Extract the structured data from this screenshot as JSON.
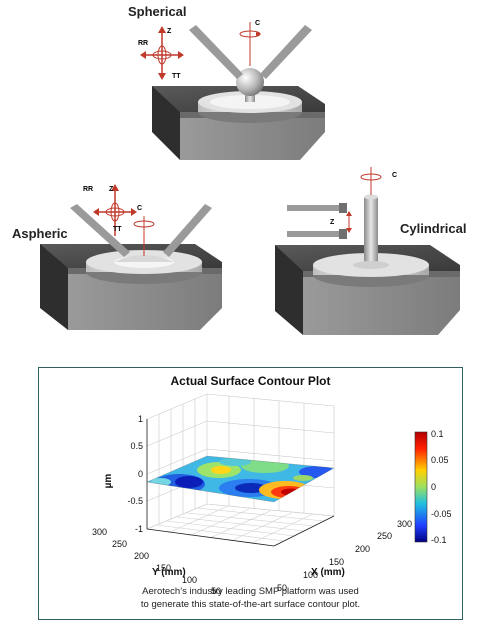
{
  "headings": {
    "spherical": "Spherical",
    "aspheric": "Aspheric",
    "cylindrical": "Cylindrical"
  },
  "axis_labels": {
    "z": "Z",
    "rr": "RR",
    "tt": "TT",
    "c": "C"
  },
  "plot": {
    "title": "Actual Surface Contour Plot",
    "zlabel": "µm",
    "xlabel": "X (mm)",
    "ylabel": "Y (mm)",
    "z_ticks": [
      "1",
      "0.5",
      "0",
      "-0.5",
      "-1"
    ],
    "y_ticks": [
      "300",
      "250",
      "200",
      "150",
      "100",
      "50"
    ],
    "x_ticks": [
      "50",
      "100",
      "150",
      "200",
      "250",
      "300"
    ],
    "colorbar_ticks": [
      "0.1",
      "0.05",
      "0",
      "-0.05",
      "-0.1"
    ],
    "caption_line1": "Aerotech’s industry leading SMP platform was used",
    "caption_line2": "to generate this state-of-the-art surface contour plot."
  },
  "chart_data": {
    "type": "surface",
    "title": "Actual Surface Contour Plot",
    "xlabel": "X (mm)",
    "ylabel": "Y (mm)",
    "zlabel": "µm",
    "xlim": [
      50,
      300
    ],
    "ylim": [
      50,
      300
    ],
    "zlim": [
      -1,
      1
    ],
    "colorbar_range": [
      -0.1,
      0.1
    ],
    "colormap": "jet",
    "grid": true
  }
}
